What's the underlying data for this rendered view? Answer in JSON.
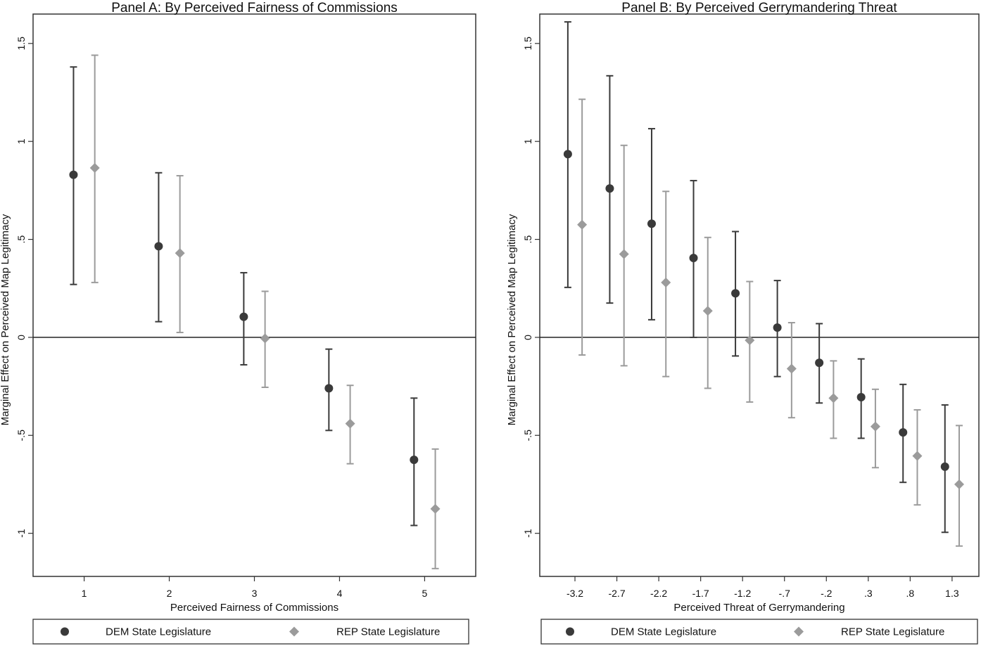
{
  "chart_data": [
    {
      "type": "scatter",
      "title": "Panel A: By Perceived Fairness of Commissions",
      "xlabel": "Perceived Fairness of Commissions",
      "ylabel": "Marginal Effect on Perceived Map Legitimacy",
      "ylim": [
        -1.22,
        1.65
      ],
      "yticks": [
        1.5,
        1,
        0.5,
        0,
        -0.5,
        -1
      ],
      "ytick_labels": [
        "1.5",
        "1",
        ".5",
        "0",
        "-.5",
        "-1"
      ],
      "xticks": [
        1,
        2,
        3,
        4,
        5
      ],
      "xtick_labels": [
        "1",
        "2",
        "3",
        "4",
        "5"
      ],
      "xlim": [
        0.4,
        5.6
      ],
      "offset": 0.125,
      "reference_line": 0,
      "series": [
        {
          "name": "DEM State Legislature",
          "marker": "circle",
          "color": "#3a3a3a",
          "points": [
            {
              "x": 1,
              "est": 0.83,
              "lo": 0.27,
              "hi": 1.38
            },
            {
              "x": 2,
              "est": 0.465,
              "lo": 0.08,
              "hi": 0.84
            },
            {
              "x": 3,
              "est": 0.105,
              "lo": -0.14,
              "hi": 0.33
            },
            {
              "x": 4,
              "est": -0.26,
              "lo": -0.475,
              "hi": -0.06
            },
            {
              "x": 5,
              "est": -0.625,
              "lo": -0.96,
              "hi": -0.31
            }
          ]
        },
        {
          "name": "REP State Legislature",
          "marker": "diamond",
          "color": "#9b9b9b",
          "points": [
            {
              "x": 1,
              "est": 0.865,
              "lo": 0.28,
              "hi": 1.44
            },
            {
              "x": 2,
              "est": 0.43,
              "lo": 0.025,
              "hi": 0.825
            },
            {
              "x": 3,
              "est": -0.005,
              "lo": -0.255,
              "hi": 0.235
            },
            {
              "x": 4,
              "est": -0.44,
              "lo": -0.645,
              "hi": -0.245
            },
            {
              "x": 5,
              "est": -0.875,
              "lo": -1.18,
              "hi": -0.57
            }
          ]
        }
      ],
      "legend": {
        "position": "bottom",
        "entries": [
          "DEM State Legislature",
          "REP State Legislature"
        ]
      }
    },
    {
      "type": "scatter",
      "title": "Panel B: By Perceived Gerrymandering Threat",
      "xlabel": "Perceived Threat of Gerrymandering",
      "ylabel": "Marginal Effect on Perceived Map Legitimacy",
      "ylim": [
        -1.22,
        1.65
      ],
      "yticks": [
        1.5,
        1,
        0.5,
        0,
        -0.5,
        -1
      ],
      "ytick_labels": [
        "1.5",
        "1",
        ".5",
        "0",
        "-.5",
        "-1"
      ],
      "xticks": [
        -3.2,
        -2.7,
        -2.2,
        -1.7,
        -1.2,
        -0.7,
        -0.2,
        0.3,
        0.8,
        1.3
      ],
      "xtick_labels": [
        "-3.2",
        "-2.7",
        "-2.2",
        "-1.7",
        "-1.2",
        "-.7",
        "-.2",
        ".3",
        ".8",
        "1.3"
      ],
      "xlim": [
        -3.62,
        1.62
      ],
      "offset": 0.085,
      "reference_line": 0,
      "series": [
        {
          "name": "DEM State Legislature",
          "marker": "circle",
          "color": "#3a3a3a",
          "points": [
            {
              "x": -3.2,
              "est": 0.935,
              "lo": 0.255,
              "hi": 1.61
            },
            {
              "x": -2.7,
              "est": 0.76,
              "lo": 0.175,
              "hi": 1.335
            },
            {
              "x": -2.2,
              "est": 0.58,
              "lo": 0.09,
              "hi": 1.065
            },
            {
              "x": -1.7,
              "est": 0.405,
              "lo": 0.0,
              "hi": 0.8
            },
            {
              "x": -1.2,
              "est": 0.225,
              "lo": -0.095,
              "hi": 0.54
            },
            {
              "x": -0.7,
              "est": 0.05,
              "lo": -0.2,
              "hi": 0.29
            },
            {
              "x": -0.2,
              "est": -0.13,
              "lo": -0.335,
              "hi": 0.07
            },
            {
              "x": 0.3,
              "est": -0.305,
              "lo": -0.515,
              "hi": -0.11
            },
            {
              "x": 0.8,
              "est": -0.485,
              "lo": -0.74,
              "hi": -0.24
            },
            {
              "x": 1.3,
              "est": -0.66,
              "lo": -0.995,
              "hi": -0.345
            }
          ]
        },
        {
          "name": "REP State Legislature",
          "marker": "diamond",
          "color": "#9b9b9b",
          "points": [
            {
              "x": -3.2,
              "est": 0.575,
              "lo": -0.09,
              "hi": 1.215
            },
            {
              "x": -2.7,
              "est": 0.425,
              "lo": -0.145,
              "hi": 0.98
            },
            {
              "x": -2.2,
              "est": 0.28,
              "lo": -0.2,
              "hi": 0.745
            },
            {
              "x": -1.7,
              "est": 0.135,
              "lo": -0.26,
              "hi": 0.51
            },
            {
              "x": -1.2,
              "est": -0.015,
              "lo": -0.33,
              "hi": 0.285
            },
            {
              "x": -0.7,
              "est": -0.16,
              "lo": -0.41,
              "hi": 0.075
            },
            {
              "x": -0.2,
              "est": -0.31,
              "lo": -0.515,
              "hi": -0.12
            },
            {
              "x": 0.3,
              "est": -0.455,
              "lo": -0.665,
              "hi": -0.265
            },
            {
              "x": 0.8,
              "est": -0.605,
              "lo": -0.855,
              "hi": -0.37
            },
            {
              "x": 1.3,
              "est": -0.75,
              "lo": -1.065,
              "hi": -0.45
            }
          ]
        }
      ],
      "legend": {
        "position": "bottom",
        "entries": [
          "DEM State Legislature",
          "REP State Legislature"
        ]
      }
    }
  ]
}
